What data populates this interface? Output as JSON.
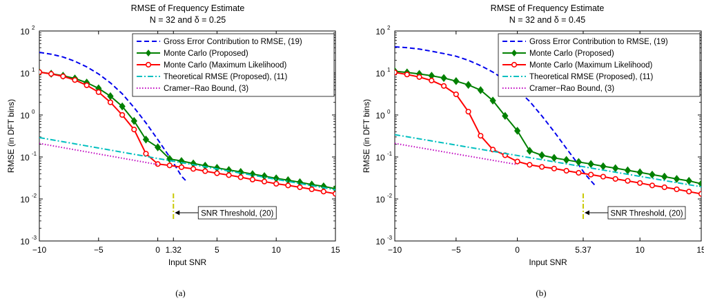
{
  "chart_data": [
    {
      "type": "line",
      "title": "RMSE of Frequency Estimate",
      "subtitle": "N = 32 and δ = 0.25",
      "xlabel": "Input SNR",
      "ylabel": "RMSE (in DFT bins)",
      "panel_label": "(a)",
      "xlim": [
        -10,
        15
      ],
      "ylim_log10": [
        -3,
        2
      ],
      "yscale": "log",
      "x_ticks": [
        -10,
        -5,
        0,
        1.32,
        5,
        10,
        15
      ],
      "x_tick_labels": [
        "−10",
        "−5",
        "0",
        "1.32",
        "5",
        "10",
        "15"
      ],
      "y_tick_labels": [
        "10",
        "10",
        "10",
        "10",
        "10",
        "10"
      ],
      "y_tick_exponents": [
        "-3",
        "-2",
        "-1",
        "0",
        "1",
        "2"
      ],
      "grid": false,
      "legend_position": "top-right",
      "threshold": {
        "x": 1.32,
        "y_range": [
          0.003,
          0.0135
        ],
        "label": "SNR Threshold,  (20)"
      },
      "series": [
        {
          "name": "Gross Error Contribution to RMSE, (19)",
          "color": "#0000ee",
          "style": "dashed",
          "marker": "none",
          "x": [
            -10,
            -9,
            -8,
            -7,
            -6,
            -5,
            -4,
            -3,
            -2,
            -1,
            0,
            1,
            1.5,
            2,
            2.5
          ],
          "y": [
            31,
            28,
            24,
            19,
            14,
            9.5,
            5.8,
            3.2,
            1.5,
            0.65,
            0.26,
            0.1,
            0.06,
            0.035,
            0.025
          ]
        },
        {
          "name": "Monte Carlo (Proposed)",
          "color": "#008000",
          "style": "solid",
          "marker": "diamond",
          "x": [
            -10,
            -9,
            -8,
            -7,
            -6,
            -5,
            -4,
            -3,
            -2,
            -1,
            0,
            1,
            2,
            3,
            4,
            5,
            6,
            7,
            8,
            9,
            10,
            11,
            12,
            13,
            14,
            15
          ],
          "y": [
            10.5,
            9.6,
            8.6,
            7.4,
            5.9,
            4.3,
            2.8,
            1.6,
            0.72,
            0.26,
            0.17,
            0.09,
            0.08,
            0.07,
            0.062,
            0.055,
            0.049,
            0.044,
            0.039,
            0.035,
            0.031,
            0.028,
            0.025,
            0.022,
            0.02,
            0.0175
          ]
        },
        {
          "name": "Monte Carlo (Maximum Likelihood)",
          "color": "#ff0000",
          "style": "solid",
          "marker": "circle",
          "x": [
            -10,
            -9,
            -8,
            -7,
            -6,
            -5,
            -4,
            -3,
            -2,
            -1,
            0,
            1,
            2,
            3,
            4,
            5,
            6,
            7,
            8,
            9,
            10,
            11,
            12,
            13,
            14,
            15
          ],
          "y": [
            10.5,
            9.5,
            8.3,
            6.8,
            5.1,
            3.5,
            2.0,
            1.0,
            0.45,
            0.12,
            0.068,
            0.063,
            0.057,
            0.052,
            0.046,
            0.041,
            0.037,
            0.033,
            0.029,
            0.026,
            0.023,
            0.021,
            0.019,
            0.017,
            0.015,
            0.0133
          ]
        },
        {
          "name": "Theoretical RMSE (Proposed), (11)",
          "color": "#00bfbf",
          "style": "dashdot",
          "marker": "none",
          "x": [
            -10,
            15
          ],
          "y": [
            0.29,
            0.0165
          ]
        },
        {
          "name": "Cramer−Rao Bound, (3)",
          "color": "#bf00bf",
          "style": "dotted",
          "marker": "none",
          "x": [
            -10,
            0
          ],
          "y": [
            0.21,
            0.066
          ]
        }
      ]
    },
    {
      "type": "line",
      "title": "RMSE of Frequency Estimate",
      "subtitle": "N = 32 and δ = 0.45",
      "xlabel": "Input SNR",
      "ylabel": "RMSE (in DFT bins)",
      "panel_label": "(b)",
      "xlim": [
        -10,
        15
      ],
      "ylim_log10": [
        -3,
        2
      ],
      "yscale": "log",
      "x_ticks": [
        -10,
        -5,
        0,
        5.37,
        10,
        15
      ],
      "x_tick_labels": [
        "−10",
        "−5",
        "0",
        "5.37",
        "10",
        "15"
      ],
      "y_tick_labels": [
        "10",
        "10",
        "10",
        "10",
        "10",
        "10"
      ],
      "y_tick_exponents": [
        "-3",
        "-2",
        "-1",
        "0",
        "1",
        "2"
      ],
      "grid": false,
      "legend_position": "top-right",
      "threshold": {
        "x": 5.37,
        "y_range": [
          0.003,
          0.0135
        ],
        "label": "SNR Threshold, (20)"
      },
      "series": [
        {
          "name": "Gross Error Contribution to RMSE, (19)",
          "color": "#0000ee",
          "style": "dashed",
          "marker": "none",
          "x": [
            -10,
            -9,
            -8,
            -7,
            -6,
            -5,
            -4,
            -3,
            -2,
            -1,
            0,
            1,
            2,
            3,
            4,
            5,
            5.5,
            6,
            6.4
          ],
          "y": [
            42,
            40,
            37,
            33,
            29,
            25,
            20,
            15,
            10.5,
            6.8,
            4.0,
            2.1,
            0.95,
            0.4,
            0.16,
            0.065,
            0.04,
            0.027,
            0.02
          ]
        },
        {
          "name": "Monte Carlo (Proposed)",
          "color": "#008000",
          "style": "solid",
          "marker": "diamond",
          "x": [
            -10,
            -9,
            -8,
            -7,
            -6,
            -5,
            -4,
            -3,
            -2,
            -1,
            0,
            1,
            2,
            3,
            4,
            5,
            6,
            7,
            8,
            9,
            10,
            11,
            12,
            13,
            14,
            15
          ],
          "y": [
            11,
            10.3,
            9.5,
            8.6,
            7.6,
            6.4,
            5.2,
            3.9,
            2.2,
            0.95,
            0.42,
            0.14,
            0.11,
            0.095,
            0.085,
            0.076,
            0.068,
            0.06,
            0.054,
            0.048,
            0.043,
            0.038,
            0.034,
            0.03,
            0.027,
            0.023
          ]
        },
        {
          "name": "Monte Carlo (Maximum Likelihood)",
          "color": "#ff0000",
          "style": "solid",
          "marker": "circle",
          "x": [
            -10,
            -9,
            -8,
            -7,
            -6,
            -5,
            -4,
            -3,
            -2,
            -1,
            0,
            1,
            2,
            3,
            4,
            5,
            6,
            7,
            8,
            9,
            10,
            11,
            12,
            13,
            14,
            15
          ],
          "y": [
            10.3,
            9.2,
            8.0,
            6.6,
            4.9,
            3.1,
            1.2,
            0.32,
            0.15,
            0.11,
            0.078,
            0.065,
            0.058,
            0.053,
            0.047,
            0.042,
            0.038,
            0.034,
            0.03,
            0.027,
            0.024,
            0.021,
            0.019,
            0.017,
            0.015,
            0.0132
          ]
        },
        {
          "name": "Theoretical RMSE (Proposed), (11)",
          "color": "#00bfbf",
          "style": "dashdot",
          "marker": "none",
          "x": [
            -10,
            15
          ],
          "y": [
            0.34,
            0.0195
          ]
        },
        {
          "name": "Cramer−Rao Bound, (3)",
          "color": "#bf00bf",
          "style": "dotted",
          "marker": "none",
          "x": [
            -10,
            0
          ],
          "y": [
            0.21,
            0.066
          ]
        }
      ]
    }
  ]
}
